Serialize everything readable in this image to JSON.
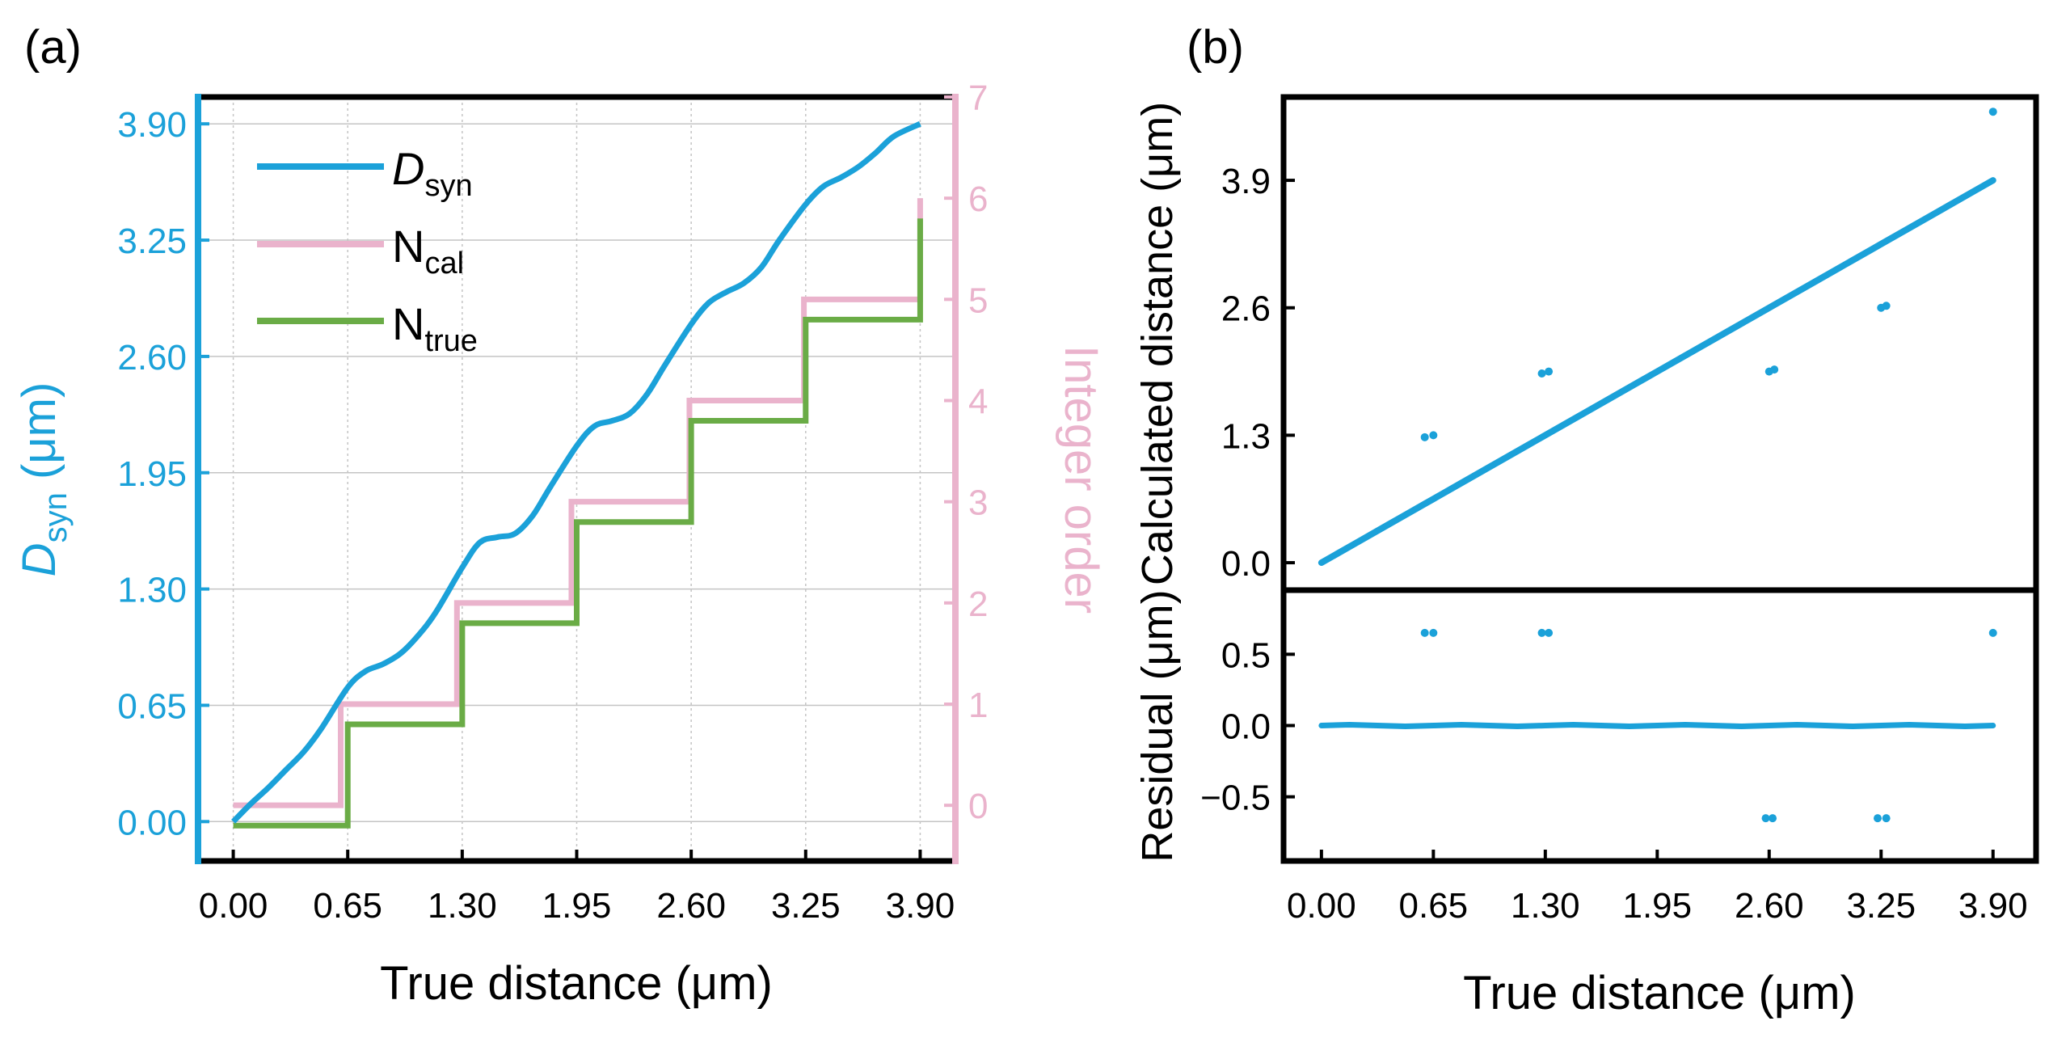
{
  "colors": {
    "dsyn": "#1ba1d9",
    "ncal": "#eab3cc",
    "ntrue": "#6aac46",
    "axis": "#000000",
    "grid": "#c4c4c4"
  },
  "panel_a": {
    "label": "(a)",
    "legend": {
      "dsyn": {
        "main": "D",
        "sub": "syn"
      },
      "ncal": {
        "main": "N",
        "sub": "cal"
      },
      "ntrue": {
        "main": "N",
        "sub": "true"
      }
    }
  },
  "panel_b": {
    "label": "(b)"
  },
  "chart_data": [
    {
      "type": "line",
      "panel": "(a)",
      "xlabel": "True distance (μm)",
      "ylabel": {
        "main": "D",
        "sub": "syn",
        "unit": " (μm)"
      },
      "y2label": "Integer order",
      "xlim": [
        -0.2,
        4.1
      ],
      "ylim": [
        -0.22,
        4.05
      ],
      "y2lim": [
        -0.55,
        7
      ],
      "xticks": [
        "0.00",
        "0.65",
        "1.30",
        "1.95",
        "2.60",
        "3.25",
        "3.90"
      ],
      "yticks": [
        "0.00",
        "0.65",
        "1.30",
        "1.95",
        "2.60",
        "3.25",
        "3.90"
      ],
      "y2ticks": [
        "0",
        "1",
        "2",
        "3",
        "4",
        "5",
        "6",
        "7"
      ],
      "grid": true,
      "legend_position": "top-left",
      "series": [
        {
          "key": "dsyn",
          "name": "Dsyn",
          "axis": "left",
          "x": [
            0,
            0.1,
            0.2,
            0.3,
            0.4,
            0.5,
            0.65,
            0.75,
            0.85,
            0.95,
            1.05,
            1.15,
            1.3,
            1.4,
            1.5,
            1.6,
            1.7,
            1.8,
            1.95,
            2.05,
            2.15,
            2.25,
            2.35,
            2.45,
            2.6,
            2.7,
            2.8,
            2.9,
            3.0,
            3.1,
            3.25,
            3.35,
            3.45,
            3.55,
            3.65,
            3.75,
            3.9
          ],
          "y": [
            0.0,
            0.1,
            0.19,
            0.29,
            0.39,
            0.52,
            0.75,
            0.84,
            0.88,
            0.94,
            1.04,
            1.17,
            1.42,
            1.56,
            1.59,
            1.61,
            1.71,
            1.87,
            2.1,
            2.21,
            2.24,
            2.28,
            2.39,
            2.55,
            2.78,
            2.9,
            2.96,
            3.01,
            3.1,
            3.25,
            3.45,
            3.55,
            3.6,
            3.66,
            3.74,
            3.83,
            3.9
          ]
        },
        {
          "key": "ncal",
          "name": "Ncal",
          "axis": "right",
          "step": true,
          "x": [
            0,
            0.61,
            0.61,
            1.27,
            1.27,
            1.92,
            1.92,
            2.59,
            2.59,
            3.24,
            3.24,
            3.9,
            3.9
          ],
          "y": [
            0,
            0,
            1,
            1,
            2,
            2,
            3,
            3,
            4,
            4,
            5,
            5,
            6
          ]
        },
        {
          "key": "ntrue",
          "name": "Ntrue",
          "axis": "right",
          "step": true,
          "x": [
            0,
            0.65,
            0.65,
            1.3,
            1.3,
            1.95,
            1.95,
            2.6,
            2.6,
            3.25,
            3.25,
            3.9,
            3.9
          ],
          "y": [
            -0.2,
            -0.2,
            0.8,
            0.8,
            1.8,
            1.8,
            2.8,
            2.8,
            3.8,
            3.8,
            4.8,
            4.8,
            5.8
          ]
        }
      ]
    },
    {
      "type": "scatter",
      "panel": "(b) top",
      "ylabel": "Calculated distance (μm)",
      "xlim": [
        -0.22,
        4.15
      ],
      "ylim": [
        -0.28,
        4.75
      ],
      "yticks": [
        "0.0",
        "1.3",
        "2.6",
        "3.9"
      ],
      "grid": false,
      "series": [
        {
          "key": "calc",
          "x": [
            0,
            0.2,
            0.4,
            0.6,
            0.65,
            0.8,
            1.0,
            1.2,
            1.3,
            1.5,
            1.7,
            1.9,
            1.95,
            2.1,
            2.3,
            2.5,
            2.6,
            2.8,
            3.0,
            3.2,
            3.25,
            3.4,
            3.6,
            3.8,
            3.9
          ],
          "y": [
            0,
            0.2,
            0.4,
            0.6,
            0.65,
            0.8,
            1.0,
            1.2,
            1.3,
            1.5,
            1.7,
            1.9,
            1.95,
            2.1,
            2.3,
            2.5,
            2.6,
            2.8,
            3.0,
            3.2,
            3.25,
            3.4,
            3.6,
            3.8,
            3.9
          ]
        },
        {
          "key": "outliers",
          "x": [
            0.6,
            0.65,
            1.28,
            1.32,
            2.6,
            2.63,
            3.25,
            3.28,
            3.9
          ],
          "y": [
            1.28,
            1.3,
            1.93,
            1.95,
            1.95,
            1.97,
            2.6,
            2.62,
            4.6
          ]
        }
      ]
    },
    {
      "type": "scatter",
      "panel": "(b) bottom",
      "xlabel": "True distance (μm)",
      "ylabel": "Residual (μm)",
      "xlim": [
        -0.22,
        4.15
      ],
      "ylim": [
        -0.95,
        0.95
      ],
      "xticks": [
        "0.00",
        "0.65",
        "1.30",
        "1.95",
        "2.60",
        "3.25",
        "3.90"
      ],
      "yticks": [
        "0.5",
        "0.0",
        "−0.5"
      ],
      "grid": false,
      "series": [
        {
          "key": "residual",
          "x": [
            0,
            0.1625,
            0.325,
            0.4875,
            0.65,
            0.8125,
            0.975,
            1.1375,
            1.3,
            1.4625,
            1.625,
            1.7875,
            1.95,
            2.1125,
            2.275,
            2.4375,
            2.6,
            2.7625,
            2.925,
            3.0875,
            3.25,
            3.4125,
            3.575,
            3.7375,
            3.9
          ],
          "y": [
            0,
            0.006,
            0,
            -0.006,
            0,
            0.006,
            0,
            -0.006,
            0,
            0.006,
            0,
            -0.006,
            0,
            0.006,
            0,
            -0.006,
            0,
            0.006,
            0,
            -0.006,
            0,
            0.006,
            0,
            -0.006,
            0
          ]
        },
        {
          "key": "outliers",
          "x": [
            0.6,
            0.65,
            1.28,
            1.32,
            2.58,
            2.62,
            3.23,
            3.28,
            3.9
          ],
          "y": [
            0.65,
            0.65,
            0.65,
            0.65,
            -0.65,
            -0.65,
            -0.65,
            -0.65,
            0.65
          ]
        }
      ]
    }
  ]
}
